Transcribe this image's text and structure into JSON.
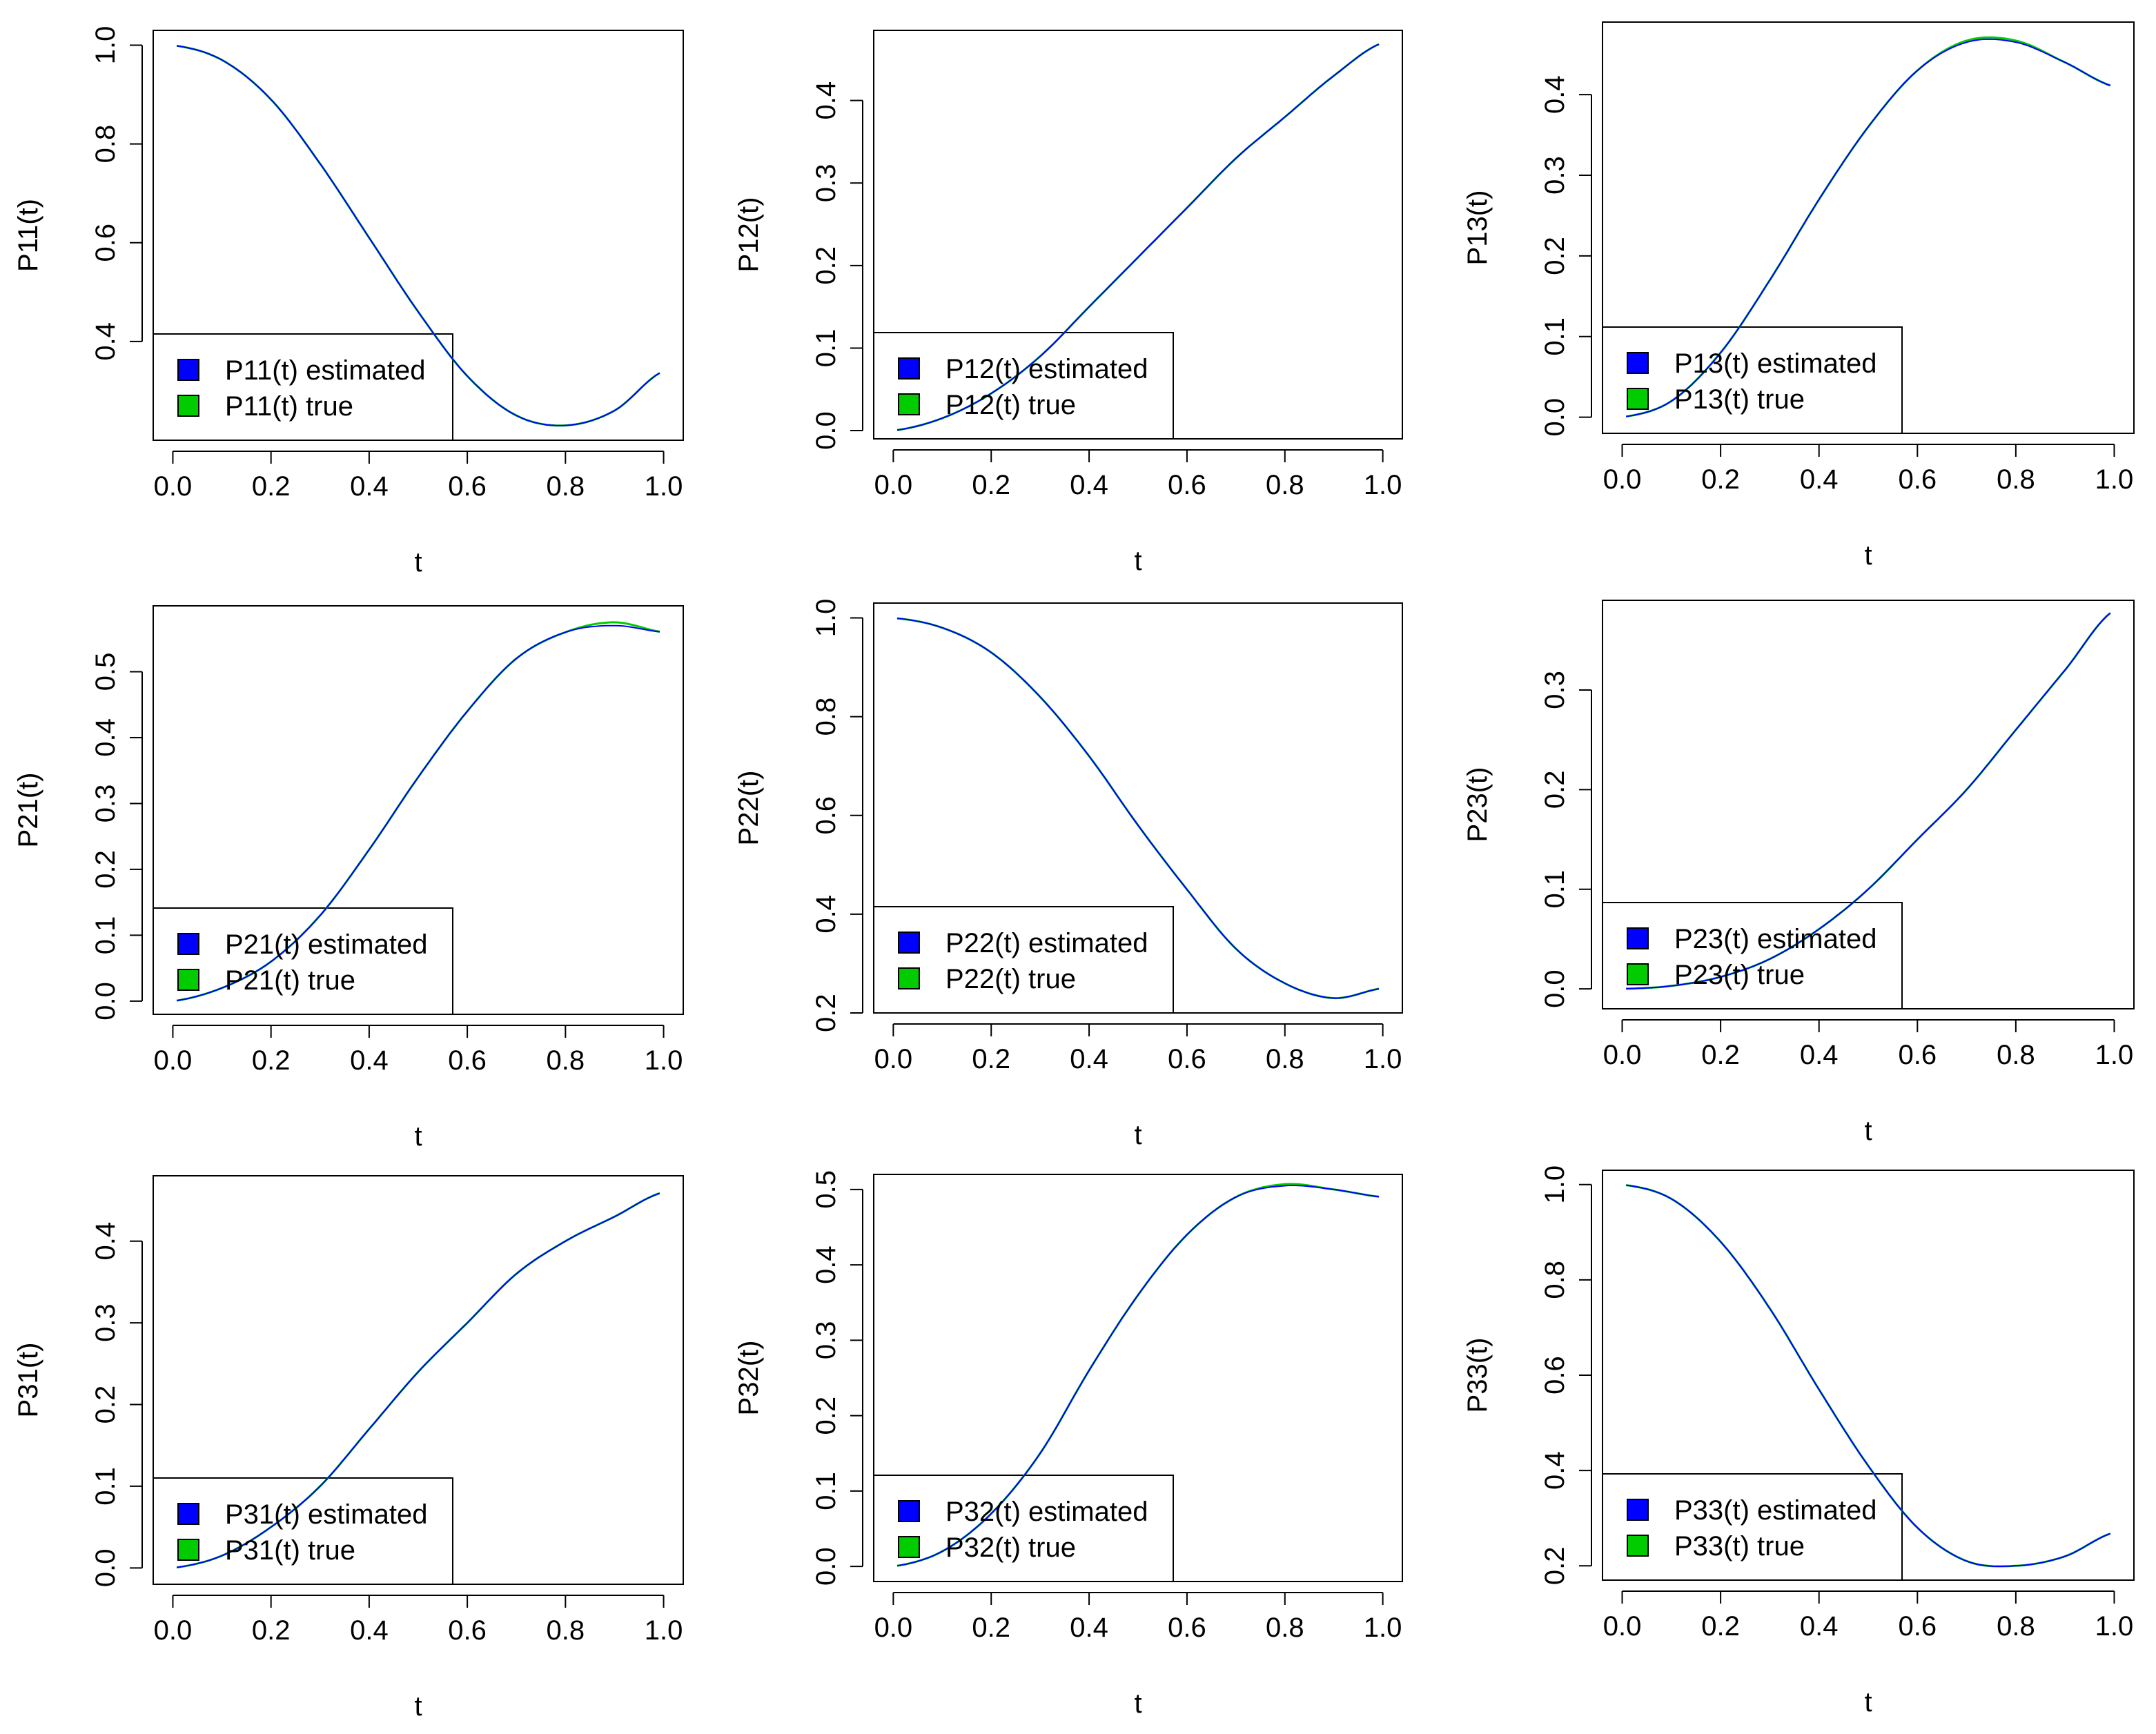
{
  "figure": {
    "colors": {
      "estimated": "#0000ff",
      "true": "#00cc00",
      "axis": "#000000",
      "background": "#ffffff"
    }
  },
  "chart_data": [
    {
      "id": "P11",
      "type": "line",
      "xlabel": "t",
      "ylabel": "P11(t)",
      "xlim": [
        0,
        1
      ],
      "ylim": [
        0.2,
        1.03
      ],
      "xticks": [
        "0.0",
        "0.2",
        "0.4",
        "0.6",
        "0.8",
        "1.0"
      ],
      "yticks": [
        "0.4",
        "0.6",
        "0.8",
        "1.0"
      ],
      "x": [
        0,
        0.1,
        0.2,
        0.3,
        0.4,
        0.5,
        0.6,
        0.7,
        0.8,
        0.9,
        1.0
      ],
      "series": [
        {
          "name": "P11(t) estimated",
          "color": "#0000ff",
          "values": [
            1.0,
            0.97,
            0.89,
            0.76,
            0.61,
            0.46,
            0.33,
            0.25,
            0.23,
            0.26,
            0.34
          ]
        },
        {
          "name": "P11(t) true",
          "color": "#00cc00",
          "values": [
            1.0,
            0.97,
            0.89,
            0.76,
            0.61,
            0.46,
            0.33,
            0.25,
            0.23,
            0.26,
            0.34
          ]
        }
      ]
    },
    {
      "id": "P12",
      "type": "line",
      "xlabel": "t",
      "ylabel": "P12(t)",
      "xlim": [
        0,
        1
      ],
      "ylim": [
        -0.01,
        0.485
      ],
      "xticks": [
        "0.0",
        "0.2",
        "0.4",
        "0.6",
        "0.8",
        "1.0"
      ],
      "yticks": [
        "0.0",
        "0.1",
        "0.2",
        "0.3",
        "0.4"
      ],
      "x": [
        0,
        0.1,
        0.2,
        0.3,
        0.4,
        0.5,
        0.6,
        0.7,
        0.8,
        0.9,
        1.0
      ],
      "series": [
        {
          "name": "P12(t) estimated",
          "color": "#0000ff",
          "values": [
            0.0,
            0.015,
            0.045,
            0.09,
            0.15,
            0.21,
            0.27,
            0.33,
            0.38,
            0.43,
            0.47
          ]
        },
        {
          "name": "P12(t) true",
          "color": "#00cc00",
          "values": [
            0.0,
            0.015,
            0.045,
            0.09,
            0.15,
            0.21,
            0.27,
            0.33,
            0.38,
            0.43,
            0.47
          ]
        }
      ]
    },
    {
      "id": "P13",
      "type": "line",
      "xlabel": "t",
      "ylabel": "P13(t)",
      "xlim": [
        0,
        1
      ],
      "ylim": [
        -0.02,
        0.49
      ],
      "xticks": [
        "0.0",
        "0.2",
        "0.4",
        "0.6",
        "0.8",
        "1.0"
      ],
      "yticks": [
        "0.0",
        "0.1",
        "0.2",
        "0.3",
        "0.4"
      ],
      "x": [
        0,
        0.1,
        0.2,
        0.3,
        0.4,
        0.5,
        0.6,
        0.7,
        0.8,
        0.9,
        1.0
      ],
      "series": [
        {
          "name": "P13(t) estimated",
          "color": "#0000ff",
          "values": [
            0.0,
            0.02,
            0.08,
            0.17,
            0.27,
            0.36,
            0.43,
            0.465,
            0.465,
            0.44,
            0.41
          ]
        },
        {
          "name": "P13(t) true",
          "color": "#00cc00",
          "values": [
            0.0,
            0.02,
            0.08,
            0.17,
            0.27,
            0.36,
            0.43,
            0.467,
            0.467,
            0.44,
            0.41
          ]
        }
      ]
    },
    {
      "id": "P21",
      "type": "line",
      "xlabel": "t",
      "ylabel": "P21(t)",
      "xlim": [
        0,
        1
      ],
      "ylim": [
        -0.02,
        0.6
      ],
      "xticks": [
        "0.0",
        "0.2",
        "0.4",
        "0.6",
        "0.8",
        "1.0"
      ],
      "yticks": [
        "0.0",
        "0.1",
        "0.2",
        "0.3",
        "0.4",
        "0.5"
      ],
      "x": [
        0,
        0.1,
        0.2,
        0.3,
        0.4,
        0.5,
        0.6,
        0.7,
        0.8,
        0.9,
        1.0
      ],
      "series": [
        {
          "name": "P21(t) estimated",
          "color": "#0000ff",
          "values": [
            0.0,
            0.02,
            0.06,
            0.13,
            0.23,
            0.34,
            0.44,
            0.52,
            0.56,
            0.57,
            0.56
          ]
        },
        {
          "name": "P21(t) true",
          "color": "#00cc00",
          "values": [
            0.0,
            0.02,
            0.06,
            0.13,
            0.23,
            0.34,
            0.44,
            0.52,
            0.56,
            0.575,
            0.56
          ]
        }
      ]
    },
    {
      "id": "P22",
      "type": "line",
      "xlabel": "t",
      "ylabel": "P22(t)",
      "xlim": [
        0,
        1
      ],
      "ylim": [
        0.2,
        1.03
      ],
      "xticks": [
        "0.0",
        "0.2",
        "0.4",
        "0.6",
        "0.8",
        "1.0"
      ],
      "yticks": [
        "0.2",
        "0.4",
        "0.6",
        "0.8",
        "1.0"
      ],
      "x": [
        0,
        0.1,
        0.2,
        0.3,
        0.4,
        0.5,
        0.6,
        0.7,
        0.8,
        0.9,
        1.0
      ],
      "series": [
        {
          "name": "P22(t) estimated",
          "color": "#0000ff",
          "values": [
            1.0,
            0.98,
            0.93,
            0.84,
            0.72,
            0.58,
            0.45,
            0.33,
            0.26,
            0.23,
            0.25
          ]
        },
        {
          "name": "P22(t) true",
          "color": "#00cc00",
          "values": [
            1.0,
            0.98,
            0.93,
            0.84,
            0.72,
            0.58,
            0.45,
            0.33,
            0.26,
            0.23,
            0.25
          ]
        }
      ]
    },
    {
      "id": "P23",
      "type": "line",
      "xlabel": "t",
      "ylabel": "P23(t)",
      "xlim": [
        0,
        1
      ],
      "ylim": [
        -0.02,
        0.39
      ],
      "xticks": [
        "0.0",
        "0.2",
        "0.4",
        "0.6",
        "0.8",
        "1.0"
      ],
      "yticks": [
        "0.0",
        "0.1",
        "0.2",
        "0.3"
      ],
      "x": [
        0,
        0.1,
        0.2,
        0.3,
        0.4,
        0.5,
        0.6,
        0.7,
        0.8,
        0.9,
        1.0
      ],
      "series": [
        {
          "name": "P23(t) estimated",
          "color": "#0000ff",
          "values": [
            0.0,
            0.003,
            0.012,
            0.03,
            0.06,
            0.1,
            0.15,
            0.2,
            0.26,
            0.32,
            0.38
          ]
        },
        {
          "name": "P23(t) true",
          "color": "#00cc00",
          "values": [
            0.0,
            0.003,
            0.012,
            0.03,
            0.06,
            0.1,
            0.15,
            0.2,
            0.26,
            0.32,
            0.38
          ]
        }
      ]
    },
    {
      "id": "P31",
      "type": "line",
      "xlabel": "t",
      "ylabel": "P31(t)",
      "xlim": [
        0,
        1
      ],
      "ylim": [
        -0.02,
        0.48
      ],
      "xticks": [
        "0.0",
        "0.2",
        "0.4",
        "0.6",
        "0.8",
        "1.0"
      ],
      "yticks": [
        "0.0",
        "0.1",
        "0.2",
        "0.3",
        "0.4"
      ],
      "x": [
        0,
        0.1,
        0.2,
        0.3,
        0.4,
        0.5,
        0.6,
        0.7,
        0.8,
        0.9,
        1.0
      ],
      "series": [
        {
          "name": "P31(t) estimated",
          "color": "#0000ff",
          "values": [
            0.0,
            0.015,
            0.05,
            0.1,
            0.17,
            0.24,
            0.3,
            0.36,
            0.4,
            0.43,
            0.46
          ]
        },
        {
          "name": "P31(t) true",
          "color": "#00cc00",
          "values": [
            0.0,
            0.015,
            0.05,
            0.1,
            0.17,
            0.24,
            0.3,
            0.36,
            0.4,
            0.43,
            0.46
          ]
        }
      ]
    },
    {
      "id": "P32",
      "type": "line",
      "xlabel": "t",
      "ylabel": "P32(t)",
      "xlim": [
        0,
        1
      ],
      "ylim": [
        -0.02,
        0.52
      ],
      "xticks": [
        "0.0",
        "0.2",
        "0.4",
        "0.6",
        "0.8",
        "1.0"
      ],
      "yticks": [
        "0.0",
        "0.1",
        "0.2",
        "0.3",
        "0.4",
        "0.5"
      ],
      "x": [
        0,
        0.1,
        0.2,
        0.3,
        0.4,
        0.5,
        0.6,
        0.7,
        0.8,
        0.9,
        1.0
      ],
      "series": [
        {
          "name": "P32(t) estimated",
          "color": "#0000ff",
          "values": [
            0.0,
            0.02,
            0.07,
            0.15,
            0.26,
            0.36,
            0.44,
            0.49,
            0.505,
            0.5,
            0.49
          ]
        },
        {
          "name": "P32(t) true",
          "color": "#00cc00",
          "values": [
            0.0,
            0.02,
            0.07,
            0.15,
            0.26,
            0.36,
            0.44,
            0.49,
            0.507,
            0.5,
            0.49
          ]
        }
      ]
    },
    {
      "id": "P33",
      "type": "line",
      "xlabel": "t",
      "ylabel": "P33(t)",
      "xlim": [
        0,
        1
      ],
      "ylim": [
        0.17,
        1.03
      ],
      "xticks": [
        "0.0",
        "0.2",
        "0.4",
        "0.6",
        "0.8",
        "1.0"
      ],
      "yticks": [
        "0.2",
        "0.4",
        "0.6",
        "0.8",
        "1.0"
      ],
      "x": [
        0,
        0.1,
        0.2,
        0.3,
        0.4,
        0.5,
        0.6,
        0.7,
        0.8,
        0.9,
        1.0
      ],
      "series": [
        {
          "name": "P33(t) estimated",
          "color": "#0000ff",
          "values": [
            1.0,
            0.97,
            0.88,
            0.74,
            0.57,
            0.41,
            0.28,
            0.21,
            0.2,
            0.22,
            0.27
          ]
        },
        {
          "name": "P33(t) true",
          "color": "#00cc00",
          "values": [
            1.0,
            0.97,
            0.88,
            0.74,
            0.57,
            0.41,
            0.28,
            0.21,
            0.2,
            0.22,
            0.27
          ]
        }
      ]
    }
  ]
}
